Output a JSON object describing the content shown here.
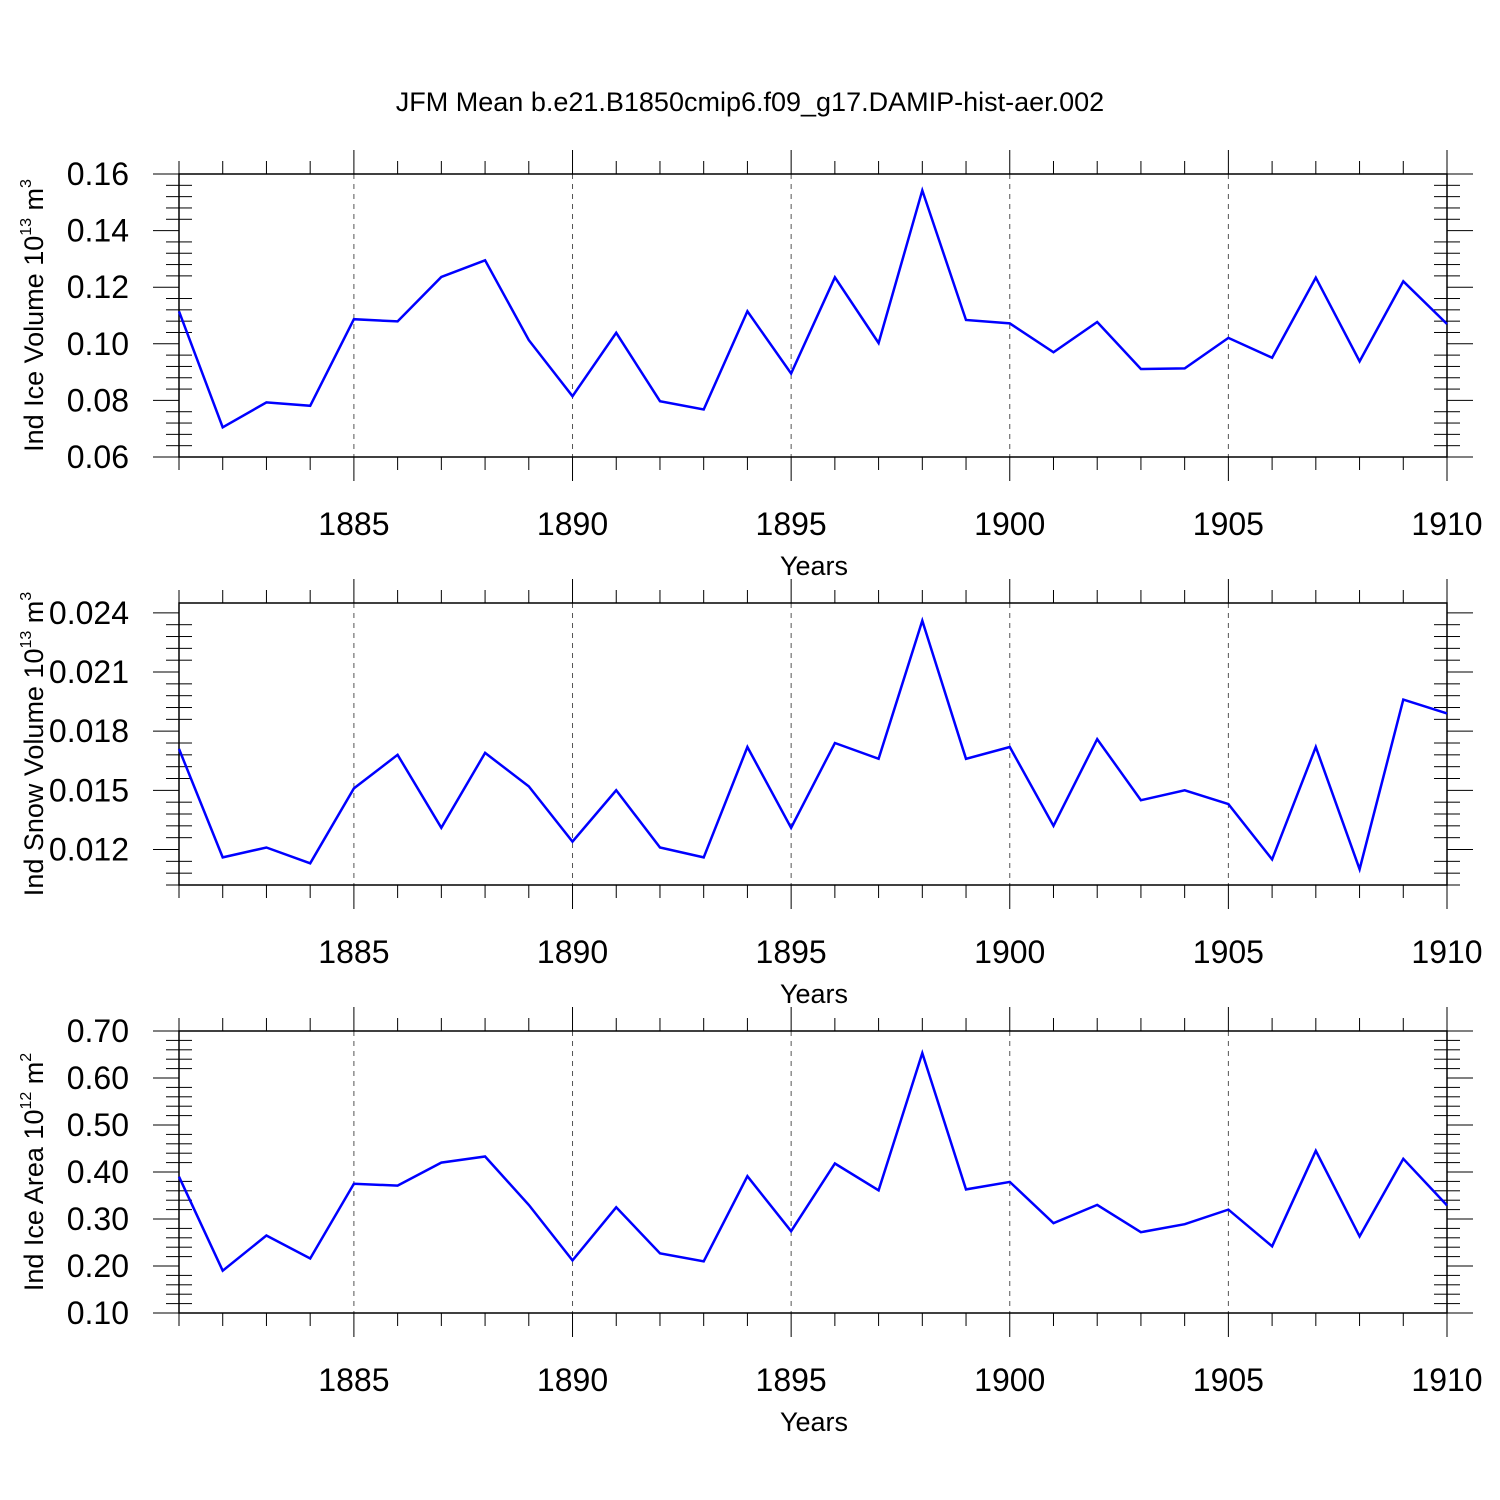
{
  "figure": {
    "title": "JFM Mean b.e21.B1850cmip6.f09_g17.DAMIP-hist-aer.002"
  },
  "chart_data": [
    {
      "type": "line",
      "xlabel": "Years",
      "ylabel": {
        "base": "Ind Ice Volume 10",
        "exp": "13",
        "unit": " m",
        "unit_exp": "3"
      },
      "xlim": [
        1881,
        1910
      ],
      "ylim": [
        0.06,
        0.16
      ],
      "xticks": [
        1885,
        1890,
        1895,
        1900,
        1905,
        1910
      ],
      "xtick_labels": [
        "1885",
        "1890",
        "1895",
        "1900",
        "1905",
        "1910"
      ],
      "yticks": [
        0.06,
        0.08,
        0.1,
        0.12,
        0.14,
        0.16
      ],
      "ytick_labels": [
        "0.06",
        "0.08",
        "0.10",
        "0.12",
        "0.14",
        "0.16"
      ],
      "grid": "vertical dashed at major x ticks",
      "series": [
        {
          "color": "#0000ff",
          "x": [
            1881,
            1882,
            1883,
            1884,
            1885,
            1886,
            1887,
            1888,
            1889,
            1890,
            1891,
            1892,
            1893,
            1894,
            1895,
            1896,
            1897,
            1898,
            1899,
            1900,
            1901,
            1902,
            1903,
            1904,
            1905,
            1906,
            1907,
            1908,
            1909,
            1910
          ],
          "y": [
            0.1115,
            0.0705,
            0.0793,
            0.0781,
            0.1087,
            0.1079,
            0.1236,
            0.1295,
            0.1013,
            0.0815,
            0.1039,
            0.0797,
            0.0768,
            0.1115,
            0.0895,
            0.1235,
            0.1003,
            0.1542,
            0.1084,
            0.1072,
            0.097,
            0.1077,
            0.0911,
            0.0913,
            0.1021,
            0.0951,
            0.1234,
            0.0938,
            0.1221,
            0.107
          ]
        }
      ]
    },
    {
      "type": "line",
      "xlabel": "Years",
      "ylabel": {
        "base": "Ind Snow Volume 10",
        "exp": "13",
        "unit": " m",
        "unit_exp": "3"
      },
      "xlim": [
        1881,
        1910
      ],
      "ylim": [
        0.0102,
        0.0245
      ],
      "xticks": [
        1885,
        1890,
        1895,
        1900,
        1905,
        1910
      ],
      "xtick_labels": [
        "1885",
        "1890",
        "1895",
        "1900",
        "1905",
        "1910"
      ],
      "yticks": [
        0.012,
        0.015,
        0.018,
        0.021,
        0.024
      ],
      "ytick_labels": [
        "0.012",
        "0.015",
        "0.018",
        "0.021",
        "0.024"
      ],
      "grid": "vertical dashed at major x ticks",
      "series": [
        {
          "color": "#0000ff",
          "x": [
            1881,
            1882,
            1883,
            1884,
            1885,
            1886,
            1887,
            1888,
            1889,
            1890,
            1891,
            1892,
            1893,
            1894,
            1895,
            1896,
            1897,
            1898,
            1899,
            1900,
            1901,
            1902,
            1903,
            1904,
            1905,
            1906,
            1907,
            1908,
            1909,
            1910
          ],
          "y": [
            0.0171,
            0.0116,
            0.0121,
            0.0113,
            0.0151,
            0.0168,
            0.0131,
            0.0169,
            0.0152,
            0.0124,
            0.015,
            0.0121,
            0.0116,
            0.0172,
            0.0131,
            0.0174,
            0.0166,
            0.0236,
            0.0166,
            0.0172,
            0.0132,
            0.0176,
            0.0145,
            0.015,
            0.0143,
            0.0115,
            0.0172,
            0.011,
            0.0196,
            0.0189
          ]
        }
      ]
    },
    {
      "type": "line",
      "xlabel": "Years",
      "ylabel": {
        "base": "Ind Ice Area 10",
        "exp": "12",
        "unit": " m",
        "unit_exp": "2"
      },
      "xlim": [
        1881,
        1910
      ],
      "ylim": [
        0.1,
        0.7
      ],
      "xticks": [
        1885,
        1890,
        1895,
        1900,
        1905,
        1910
      ],
      "xtick_labels": [
        "1885",
        "1890",
        "1895",
        "1900",
        "1905",
        "1910"
      ],
      "yticks": [
        0.1,
        0.2,
        0.3,
        0.4,
        0.5,
        0.6,
        0.7
      ],
      "ytick_labels": [
        "0.10",
        "0.20",
        "0.30",
        "0.40",
        "0.50",
        "0.60",
        "0.70"
      ],
      "grid": "vertical dashed at major x ticks",
      "series": [
        {
          "color": "#0000ff",
          "x": [
            1881,
            1882,
            1883,
            1884,
            1885,
            1886,
            1887,
            1888,
            1889,
            1890,
            1891,
            1892,
            1893,
            1894,
            1895,
            1896,
            1897,
            1898,
            1899,
            1900,
            1901,
            1902,
            1903,
            1904,
            1905,
            1906,
            1907,
            1908,
            1909,
            1910
          ],
          "y": [
            0.39,
            0.19,
            0.265,
            0.216,
            0.375,
            0.371,
            0.42,
            0.433,
            0.33,
            0.212,
            0.325,
            0.227,
            0.21,
            0.391,
            0.274,
            0.418,
            0.361,
            0.653,
            0.363,
            0.379,
            0.291,
            0.33,
            0.272,
            0.289,
            0.32,
            0.242,
            0.445,
            0.263,
            0.428,
            0.329
          ]
        }
      ]
    }
  ]
}
